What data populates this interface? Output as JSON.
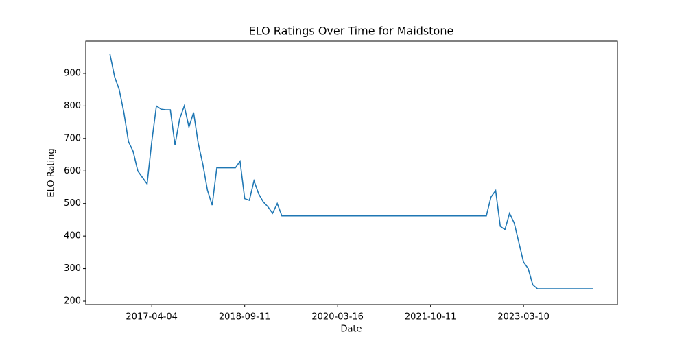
{
  "chart_data": {
    "type": "line",
    "title": "ELO Ratings Over Time for Maidstone",
    "xlabel": "Date",
    "ylabel": "ELO Rating",
    "categories": [
      null,
      null,
      null,
      null,
      null,
      null,
      null,
      null,
      null,
      "2017-04-04",
      null,
      null,
      null,
      null,
      null,
      null,
      null,
      null,
      null,
      null,
      null,
      null,
      null,
      null,
      null,
      null,
      null,
      null,
      null,
      "2018-09-11",
      null,
      null,
      null,
      null,
      null,
      null,
      null,
      null,
      null,
      null,
      null,
      null,
      null,
      null,
      null,
      null,
      null,
      null,
      null,
      "2020-03-16",
      null,
      null,
      null,
      null,
      null,
      null,
      null,
      null,
      null,
      null,
      null,
      null,
      null,
      null,
      null,
      null,
      null,
      null,
      null,
      "2021-10-11",
      null,
      null,
      null,
      null,
      null,
      null,
      null,
      null,
      null,
      null,
      null,
      null,
      null,
      null,
      null,
      null,
      null,
      null,
      null,
      "2023-03-10",
      null,
      null,
      null,
      null,
      null,
      null,
      null,
      null,
      null,
      null,
      null,
      null,
      null,
      null,
      null
    ],
    "series": [
      {
        "color": "#1f77b4",
        "values": [
          960,
          890,
          850,
          780,
          690,
          660,
          600,
          580,
          560,
          690,
          800,
          790,
          788,
          788,
          680,
          760,
          800,
          735,
          780,
          685,
          620,
          540,
          495,
          610,
          610,
          610,
          610,
          610,
          630,
          515,
          510,
          570,
          530,
          505,
          490,
          470,
          500,
          462,
          462,
          462,
          462,
          462,
          462,
          462,
          462,
          462,
          462,
          462,
          462,
          462,
          462,
          462,
          462,
          462,
          462,
          462,
          462,
          462,
          462,
          462,
          462,
          462,
          462,
          462,
          462,
          462,
          462,
          462,
          462,
          462,
          462,
          462,
          462,
          462,
          462,
          462,
          462,
          462,
          462,
          462,
          462,
          462,
          520,
          540,
          430,
          420,
          470,
          440,
          380,
          320,
          300,
          250,
          238,
          238,
          238,
          238,
          238,
          238,
          238,
          238,
          238,
          238,
          238,
          238,
          238
        ]
      }
    ],
    "xlim": [
      -5.2,
      109.2
    ],
    "ylim": [
      189.5,
      999
    ],
    "yticks": [
      200,
      300,
      400,
      500,
      600,
      700,
      800,
      900
    ]
  }
}
